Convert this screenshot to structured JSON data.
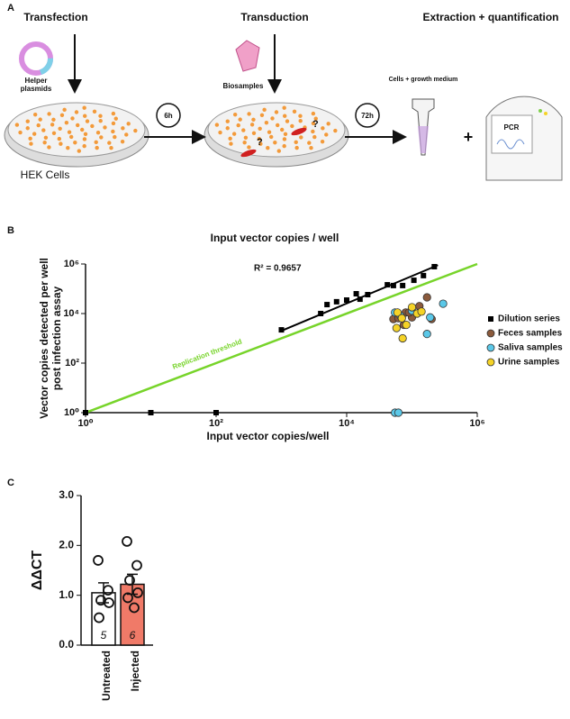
{
  "panel_a": {
    "label": "A",
    "steps": [
      "Transfection",
      "Transduction",
      "Extraction + quantification"
    ],
    "helper": [
      "Helper",
      "plasmids"
    ],
    "cells": "HEK Cells",
    "biosamples": "Biosamples",
    "time1": "6h",
    "time2": "72h",
    "medium": "Cells + growth medium",
    "plus": "+",
    "pcr": "PCR",
    "unknown": [
      "?",
      "?"
    ]
  },
  "chart_data": [
    {
      "type": "scatter",
      "panel": "B",
      "title": "Input vector copies / well",
      "xlabel": "Input vector copies/well",
      "ylabel": [
        "Vector copies detected per well",
        "post infection assay"
      ],
      "log_x": true,
      "log_y": true,
      "xlim": [
        1,
        1000000
      ],
      "ylim": [
        1,
        1000000
      ],
      "xticks": [
        {
          "value": 1,
          "label": "10⁰"
        },
        {
          "value": 100,
          "label": "10²"
        },
        {
          "value": 10000,
          "label": "10⁴"
        },
        {
          "value": 1000000,
          "label": "10⁶"
        }
      ],
      "yticks": [
        {
          "value": 1,
          "label": "10⁰"
        },
        {
          "value": 100,
          "label": "10²"
        },
        {
          "value": 10000,
          "label": "10⁴"
        },
        {
          "value": 1000000,
          "label": "10⁶"
        }
      ],
      "annotation": "R² = 0.9657",
      "fit_line": {
        "color": "#000000",
        "x": [
          1000,
          250000
        ],
        "y": [
          2000,
          900000
        ]
      },
      "threshold_line": {
        "name": "Replication threshold",
        "color": "#77d42a",
        "x": [
          1,
          1000000
        ],
        "y": [
          1,
          1000000
        ]
      },
      "legend": "right",
      "series": [
        {
          "name": "Dilution series",
          "color": "#000000",
          "marker": "square",
          "x": [
            1,
            10,
            100,
            1000,
            4000,
            5000,
            7000,
            10000,
            14000,
            16000,
            21000,
            42000,
            52000,
            72000,
            107000,
            150000,
            220000
          ],
          "y": [
            1,
            1,
            1,
            2200,
            10000,
            23000,
            30000,
            35000,
            63000,
            38000,
            58000,
            145000,
            135000,
            135000,
            220000,
            340000,
            780000
          ]
        },
        {
          "name": "Feces samples",
          "color": "#8b5a3c",
          "marker": "circle",
          "x": [
            52000,
            62000,
            80000,
            100000,
            130000,
            170000,
            200000,
            90000,
            75000
          ],
          "y": [
            6000,
            6500,
            11000,
            7000,
            20000,
            45000,
            6000,
            11000,
            3500
          ]
        },
        {
          "name": "Saliva samples",
          "color": "#5bc8e8",
          "marker": "circle",
          "x": [
            300000,
            190000,
            170000,
            100000,
            67000,
            55000,
            55000,
            62000
          ],
          "y": [
            25000,
            7000,
            1500,
            13000,
            8000,
            11000,
            1,
            1
          ]
        },
        {
          "name": "Urine samples",
          "color": "#f5d327",
          "marker": "circle",
          "x": [
            60000,
            70000,
            82000,
            100000,
            120000,
            140000,
            72000,
            58000
          ],
          "y": [
            11000,
            6500,
            3500,
            18000,
            10000,
            12000,
            1000,
            2600
          ]
        }
      ]
    },
    {
      "type": "bar",
      "panel": "C",
      "ylabel": "ΔΔCT",
      "categories": [
        "Untreated",
        "Injected"
      ],
      "values": [
        1.05,
        1.22
      ],
      "errors": [
        0.2,
        0.2
      ],
      "colors": [
        "#ffffff",
        "#f07a68"
      ],
      "n_labels": [
        "5",
        "6"
      ],
      "points": [
        [
          1.7,
          1.1,
          0.9,
          0.85,
          0.55
        ],
        [
          2.08,
          1.6,
          1.3,
          1.05,
          0.95,
          0.75
        ]
      ],
      "ylim": [
        0,
        3
      ],
      "yticks": [
        {
          "value": 0,
          "label": "0.0"
        },
        {
          "value": 1,
          "label": "1.0"
        },
        {
          "value": 2,
          "label": "2.0"
        },
        {
          "value": 3,
          "label": "3.0"
        }
      ]
    }
  ]
}
